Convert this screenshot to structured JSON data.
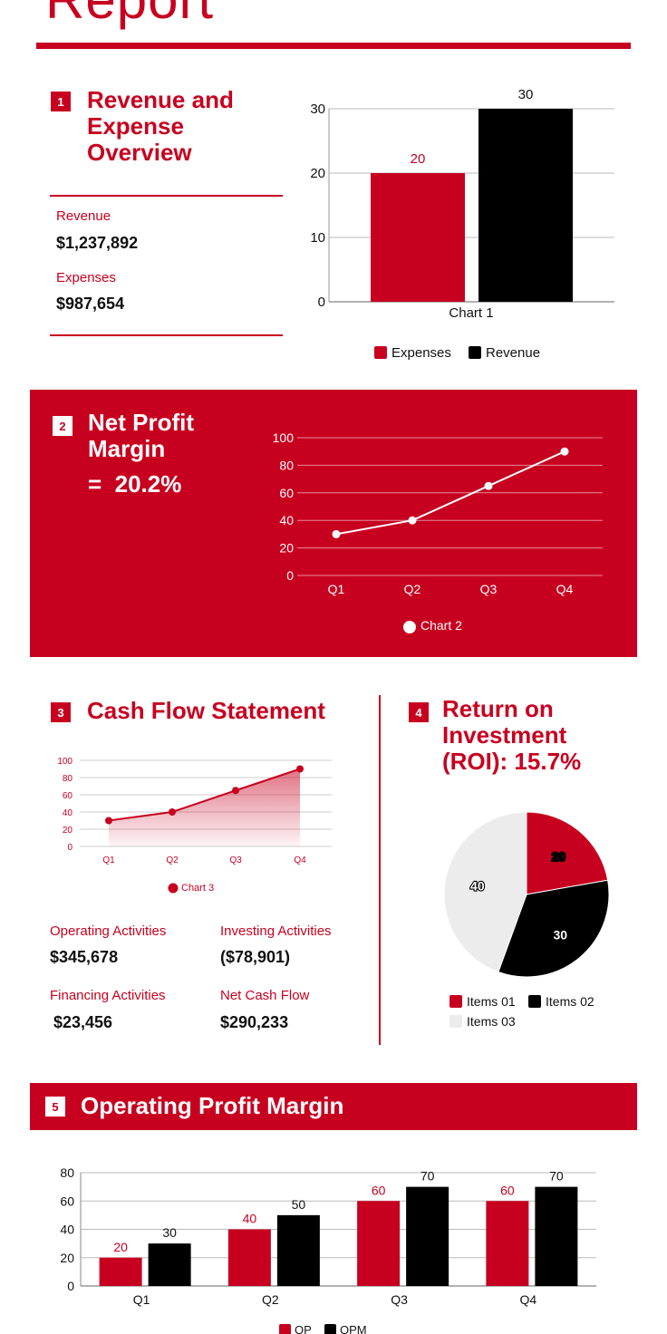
{
  "header": {
    "title": "Report"
  },
  "sections": {
    "s1": {
      "number": "1",
      "title_lines": [
        "Revenue and",
        "Expense",
        "Overview"
      ],
      "revenue_label": "Revenue",
      "revenue_value": "$1,237,892",
      "expenses_label": "Expenses",
      "expenses_value": "$987,654"
    },
    "s2": {
      "number": "2",
      "title_lines": [
        "Net Profit",
        "Margin"
      ],
      "value": "=  20.2%"
    },
    "s3": {
      "number": "3",
      "title": "Cash Flow Statement",
      "operating_label": "Operating Activities",
      "operating_value": "$345,678",
      "investing_label": "Investing Activities",
      "investing_value": "($78,901)",
      "financing_label": "Financing Activities",
      "financing_value": "$23,456",
      "net_label": "Net Cash Flow",
      "net_value": "$290,233"
    },
    "s4": {
      "number": "4",
      "title_lines": [
        "Return on",
        "Investment",
        "(ROI): 15.7%"
      ]
    },
    "s5": {
      "number": "5",
      "title": "Operating Profit Margin"
    }
  },
  "colors": {
    "accent": "#c8001f",
    "black": "#000000",
    "light": "#ececec",
    "white": "#ffffff"
  },
  "chart_data": [
    {
      "id": "chart1",
      "type": "bar",
      "categories": [
        "Chart 1"
      ],
      "series": [
        {
          "name": "Expenses",
          "values": [
            20
          ],
          "color": "#c8001f"
        },
        {
          "name": "Revenue",
          "values": [
            30
          ],
          "color": "#000000"
        }
      ],
      "yticks": [
        0,
        10,
        20,
        30
      ],
      "ylim": [
        0,
        30
      ],
      "legend": "bottom",
      "data_labels": true
    },
    {
      "id": "chart2",
      "type": "line",
      "categories": [
        "Q1",
        "Q2",
        "Q3",
        "Q4"
      ],
      "series": [
        {
          "name": "Chart 2",
          "values": [
            30,
            40,
            65,
            90
          ],
          "color": "#ffffff"
        }
      ],
      "yticks": [
        0,
        20,
        40,
        60,
        80,
        100
      ],
      "ylim": [
        0,
        100
      ],
      "legend": "bottom",
      "grid": true
    },
    {
      "id": "chart3",
      "type": "area",
      "categories": [
        "Q1",
        "Q2",
        "Q3",
        "Q4"
      ],
      "series": [
        {
          "name": "Chart 3",
          "values": [
            30,
            40,
            65,
            90
          ],
          "color": "#c8001f"
        }
      ],
      "yticks": [
        0,
        20,
        40,
        60,
        80,
        100
      ],
      "ylim": [
        0,
        100
      ],
      "legend": "bottom",
      "grid": true
    },
    {
      "id": "chart4",
      "type": "pie",
      "slices": [
        {
          "name": "Items 01",
          "value": 20,
          "color": "#c8001f"
        },
        {
          "name": "Items 02",
          "value": 30,
          "color": "#000000"
        },
        {
          "name": "Items 03",
          "value": 40,
          "color": "#ececec"
        }
      ],
      "legend": "bottom",
      "data_labels": true
    },
    {
      "id": "chart5",
      "type": "bar",
      "categories": [
        "Q1",
        "Q2",
        "Q3",
        "Q4"
      ],
      "series": [
        {
          "name": "OP",
          "values": [
            20,
            40,
            60,
            60
          ],
          "color": "#c8001f"
        },
        {
          "name": "OPM",
          "values": [
            30,
            50,
            70,
            70
          ],
          "color": "#000000"
        }
      ],
      "yticks": [
        0,
        20,
        40,
        60,
        80
      ],
      "ylim": [
        0,
        80
      ],
      "legend": "bottom",
      "data_labels": true,
      "grid": true
    }
  ]
}
